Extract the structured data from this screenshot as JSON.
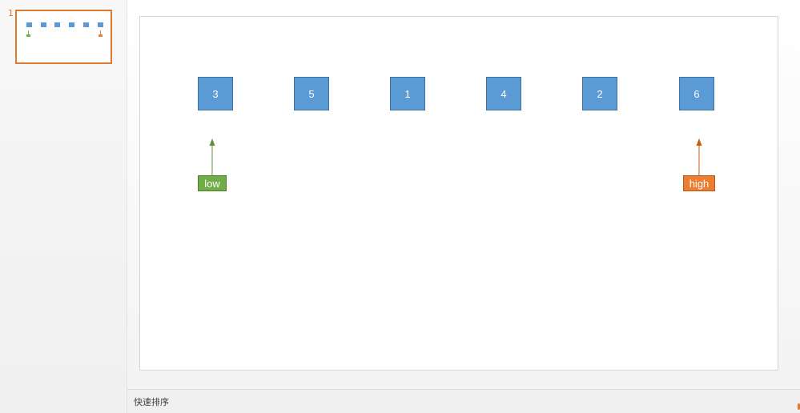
{
  "thumbnail_pane": {
    "slide_number": "1"
  },
  "slide": {
    "boxes": [
      "3",
      "5",
      "1",
      "4",
      "2",
      "6"
    ],
    "pointers": {
      "low": {
        "label": "low",
        "color": "#70ad47",
        "index": 0
      },
      "high": {
        "label": "high",
        "color": "#ed7d31",
        "index": 5
      }
    },
    "box_color": "#5b9bd5"
  },
  "notes": {
    "text": "快速排序"
  }
}
